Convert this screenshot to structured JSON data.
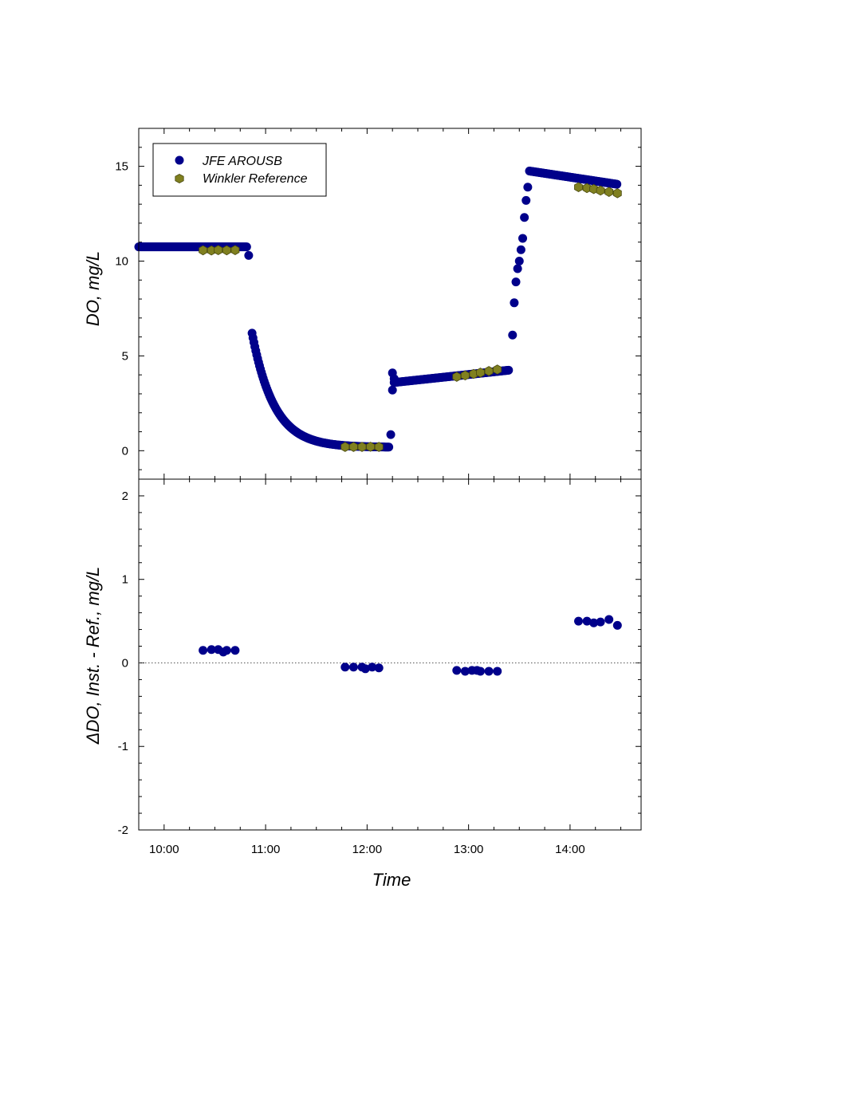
{
  "chart_data": [
    {
      "type": "scatter",
      "panel": "top",
      "ylabel": "DO, mg/L",
      "ylim": [
        -1.5,
        17
      ],
      "xlim": [
        "09:45",
        "14:42"
      ],
      "yticks": [
        0,
        5,
        10,
        15
      ],
      "grid": false,
      "legend_placement": "top-left",
      "colors": {
        "instrument": "#00008b",
        "reference": "#808020"
      },
      "series": [
        {
          "name": "JFE AROUSB",
          "marker": "circle",
          "segments": [
            {
              "x_start": "09:45",
              "x_end": "10:49",
              "y_start": 10.75,
              "y_end": 10.75,
              "shape": "flat"
            },
            {
              "x_start": "10:52",
              "x_end": "12:13",
              "y_start": 6.2,
              "y_end": 0.18,
              "shape": "decay"
            },
            {
              "x_start": "12:16",
              "x_end": "13:24",
              "y_start": 3.6,
              "y_end": 4.25,
              "shape": "linear"
            },
            {
              "x_start": "13:36",
              "x_end": "14:28",
              "y_start": 14.75,
              "y_end": 14.05,
              "shape": "linear"
            }
          ],
          "points": [
            [
              "10:50",
              10.3
            ],
            [
              "12:14",
              0.85
            ],
            [
              "12:15",
              3.2
            ],
            [
              "12:15",
              4.1
            ],
            [
              "12:16",
              3.8
            ],
            [
              "13:26",
              6.1
            ],
            [
              "13:27",
              7.8
            ],
            [
              "13:28",
              8.9
            ],
            [
              "13:29",
              9.6
            ],
            [
              "13:30",
              10.0
            ],
            [
              "13:31",
              10.6
            ],
            [
              "13:32",
              11.2
            ],
            [
              "13:33",
              12.3
            ],
            [
              "13:34",
              13.2
            ],
            [
              "13:35",
              13.9
            ]
          ]
        },
        {
          "name": "Winkler Reference",
          "marker": "hexagon",
          "points": [
            [
              "10:23",
              10.57
            ],
            [
              "10:28",
              10.56
            ],
            [
              "10:32",
              10.58
            ],
            [
              "10:37",
              10.57
            ],
            [
              "10:42",
              10.58
            ],
            [
              "11:47",
              0.2
            ],
            [
              "11:52",
              0.2
            ],
            [
              "11:57",
              0.2
            ],
            [
              "12:02",
              0.21
            ],
            [
              "12:07",
              0.2
            ],
            [
              "12:53",
              3.9
            ],
            [
              "12:58",
              3.97
            ],
            [
              "13:03",
              4.05
            ],
            [
              "13:07",
              4.12
            ],
            [
              "13:12",
              4.2
            ],
            [
              "13:17",
              4.28
            ],
            [
              "14:05",
              13.9
            ],
            [
              "14:10",
              13.85
            ],
            [
              "14:14",
              13.8
            ],
            [
              "14:18",
              13.72
            ],
            [
              "14:23",
              13.65
            ],
            [
              "14:28",
              13.58
            ]
          ]
        }
      ]
    },
    {
      "type": "scatter",
      "panel": "bottom",
      "xlabel": "Time",
      "ylabel": "ΔDO, Inst. - Ref., mg/L",
      "ylim": [
        -2,
        2.2
      ],
      "xlim": [
        "09:45",
        "14:42"
      ],
      "yticks": [
        -2,
        -1,
        0,
        1,
        2
      ],
      "xticks": [
        "10:00",
        "11:00",
        "12:00",
        "13:00",
        "14:00"
      ],
      "zero_line": "dotted",
      "grid": false,
      "series": [
        {
          "name": "JFE AROUSB",
          "points": [
            [
              "10:23",
              0.15
            ],
            [
              "10:28",
              0.16
            ],
            [
              "10:32",
              0.16
            ],
            [
              "10:35",
              0.13
            ],
            [
              "10:37",
              0.15
            ],
            [
              "10:42",
              0.15
            ],
            [
              "11:47",
              -0.05
            ],
            [
              "11:52",
              -0.05
            ],
            [
              "11:57",
              -0.05
            ],
            [
              "11:59",
              -0.07
            ],
            [
              "12:03",
              -0.05
            ],
            [
              "12:07",
              -0.06
            ],
            [
              "12:53",
              -0.09
            ],
            [
              "12:58",
              -0.1
            ],
            [
              "13:02",
              -0.09
            ],
            [
              "13:05",
              -0.09
            ],
            [
              "13:07",
              -0.1
            ],
            [
              "13:12",
              -0.1
            ],
            [
              "13:17",
              -0.1
            ],
            [
              "14:05",
              0.5
            ],
            [
              "14:10",
              0.5
            ],
            [
              "14:14",
              0.48
            ],
            [
              "14:18",
              0.49
            ],
            [
              "14:23",
              0.52
            ],
            [
              "14:28",
              0.45
            ]
          ]
        }
      ]
    }
  ]
}
